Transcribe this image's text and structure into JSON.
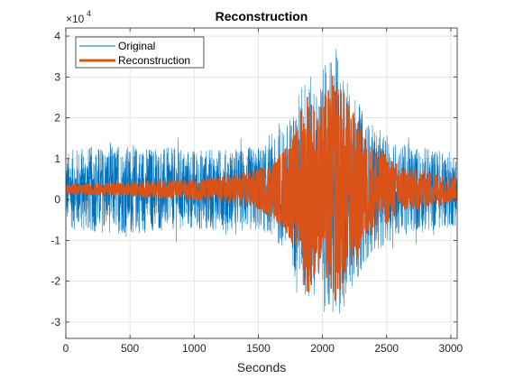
{
  "chart_data": {
    "type": "line",
    "title": "Reconstruction",
    "xlabel": "Seconds",
    "ylabel": "",
    "xlim": [
      0,
      3050
    ],
    "ylim": [
      -34000,
      42000
    ],
    "exponent_label": "×10",
    "exponent_power": "4",
    "xticks": [
      0,
      500,
      1000,
      1500,
      2000,
      2500,
      3000
    ],
    "xtick_labels": [
      "0",
      "500",
      "1000",
      "1500",
      "2000",
      "2500",
      "3000"
    ],
    "yticks": [
      -30000,
      -20000,
      -10000,
      0,
      10000,
      20000,
      30000,
      40000
    ],
    "ytick_labels": [
      "-3",
      "-2",
      "-1",
      "0",
      "1",
      "2",
      "3",
      "4"
    ],
    "grid": true,
    "legend_location": "top-left",
    "series": [
      {
        "name": "Original",
        "color": "#0072BD",
        "line_width": "thin",
        "mean": 2500,
        "envelope": [
          {
            "t": 0,
            "amp": 9000
          },
          {
            "t": 100,
            "amp": 10500
          },
          {
            "t": 500,
            "amp": 11000
          },
          {
            "t": 900,
            "amp": 10000
          },
          {
            "t": 1300,
            "amp": 10000
          },
          {
            "t": 1600,
            "amp": 11000
          },
          {
            "t": 1750,
            "amp": 18000
          },
          {
            "t": 1870,
            "amp": 30000
          },
          {
            "t": 1950,
            "amp": 25000
          },
          {
            "t": 2090,
            "amp": 36000
          },
          {
            "t": 2200,
            "amp": 27000
          },
          {
            "t": 2350,
            "amp": 17000
          },
          {
            "t": 2550,
            "amp": 12000
          },
          {
            "t": 3050,
            "amp": 9000
          }
        ]
      },
      {
        "name": "Reconstruction",
        "color": "#D95319",
        "line_width": "thick",
        "mean": 2500,
        "envelope": [
          {
            "t": 0,
            "amp": 1200
          },
          {
            "t": 400,
            "amp": 1500
          },
          {
            "t": 800,
            "amp": 2200
          },
          {
            "t": 1200,
            "amp": 3000
          },
          {
            "t": 1500,
            "amp": 5000
          },
          {
            "t": 1650,
            "amp": 8000
          },
          {
            "t": 1800,
            "amp": 15000
          },
          {
            "t": 1880,
            "amp": 27000
          },
          {
            "t": 1960,
            "amp": 19000
          },
          {
            "t": 2090,
            "amp": 29000
          },
          {
            "t": 2200,
            "amp": 22000
          },
          {
            "t": 2350,
            "amp": 12000
          },
          {
            "t": 2600,
            "amp": 6000
          },
          {
            "t": 3050,
            "amp": 3000
          }
        ]
      }
    ]
  }
}
